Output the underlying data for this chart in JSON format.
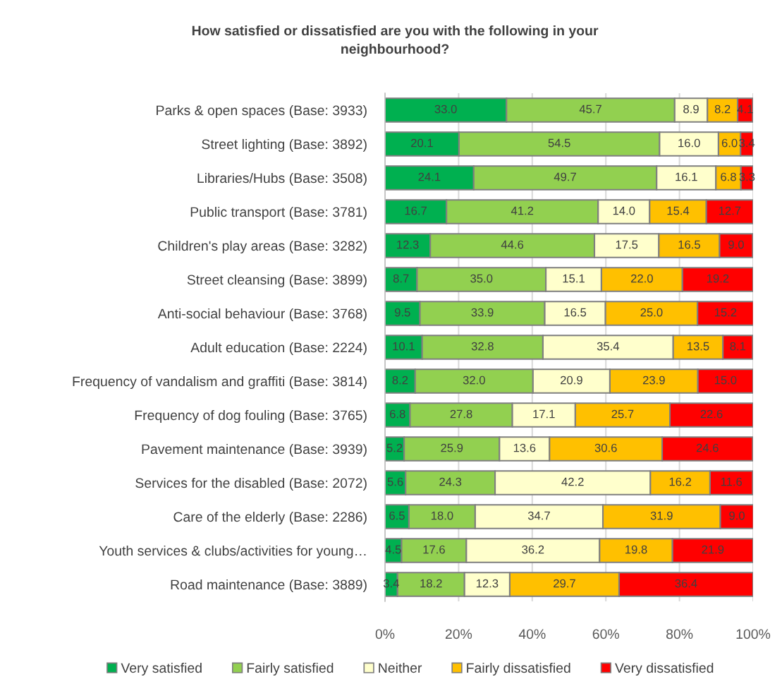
{
  "chart_data": {
    "type": "bar",
    "orientation": "horizontal",
    "stacked": true,
    "title": "How satisfied or dissatisfied are you with the following in your neighbourhood?",
    "categories": [
      "Parks & open spaces (Base: 3933)",
      "Street lighting (Base: 3892)",
      "Libraries/Hubs (Base: 3508)",
      "Public transport (Base: 3781)",
      "Children's play areas (Base: 3282)",
      "Street cleansing (Base: 3899)",
      "Anti-social behaviour (Base: 3768)",
      "Adult education (Base: 2224)",
      "Frequency of vandalism and graffiti (Base: 3814)",
      "Frequency of dog fouling (Base: 3765)",
      "Pavement maintenance (Base: 3939)",
      "Services for the disabled (Base: 2072)",
      "Care of the elderly (Base: 2286)",
      "Youth services & clubs/activities for young…",
      "Road maintenance (Base: 3889)"
    ],
    "series": [
      {
        "name": "Very satisfied",
        "color": "#00b050",
        "values": [
          33.0,
          20.1,
          24.1,
          16.7,
          12.3,
          8.7,
          9.5,
          10.1,
          8.2,
          6.8,
          5.2,
          5.6,
          6.5,
          4.5,
          3.4
        ],
        "value_labels": [
          "33.0",
          "20.1",
          "24.1",
          "16.7",
          "12.3",
          "8.7",
          "9.5",
          "10.1",
          "8.2",
          "6.8",
          "5.2",
          "5.6",
          "6.5",
          "4.5",
          "3.4"
        ]
      },
      {
        "name": "Fairly satisfied",
        "color": "#92d050",
        "values": [
          45.7,
          54.5,
          49.7,
          41.2,
          44.6,
          35.0,
          33.9,
          32.8,
          32.0,
          27.8,
          25.9,
          24.3,
          18.0,
          17.6,
          18.2
        ],
        "value_labels": [
          "45.7",
          "54.5",
          "49.7",
          "41.2",
          "44.6",
          "35.0",
          "33.9",
          "32.8",
          "32.0",
          "27.8",
          "25.9",
          "24.3",
          "18.0",
          "17.6",
          "18.2"
        ]
      },
      {
        "name": "Neither",
        "color": "#ffffcc",
        "values": [
          8.9,
          16.0,
          16.1,
          14.0,
          17.5,
          15.1,
          16.5,
          35.4,
          20.9,
          17.1,
          13.6,
          42.2,
          34.7,
          36.2,
          12.3
        ],
        "value_labels": [
          "8.9",
          "16.0",
          "16.1",
          "14.0",
          "17.5",
          "15.1",
          "16.5",
          "35.4",
          "20.9",
          "17.1",
          "13.6",
          "42.2",
          "34.7",
          "36.2",
          "12.3"
        ]
      },
      {
        "name": "Fairly dissatisfied",
        "color": "#ffc000",
        "values": [
          8.2,
          6.0,
          6.8,
          15.4,
          16.5,
          22.0,
          25.0,
          13.5,
          23.9,
          25.7,
          30.6,
          16.2,
          31.9,
          19.8,
          29.7
        ],
        "value_labels": [
          "8.2",
          "6.0",
          "6.8",
          "15.4",
          "16.5",
          "22.0",
          "25.0",
          "13.5",
          "23.9",
          "25.7",
          "30.6",
          "16.2",
          "31.9",
          "19.8",
          "29.7"
        ]
      },
      {
        "name": "Very dissatisfied",
        "color": "#ff0000",
        "values": [
          4.1,
          3.4,
          3.3,
          12.7,
          9.0,
          19.2,
          15.2,
          8.1,
          15.0,
          22.6,
          24.6,
          11.6,
          9.0,
          21.9,
          36.4
        ],
        "value_labels": [
          "4.1",
          "3.4",
          "3.3",
          "12.7",
          "9.0",
          "19.2",
          "15.2",
          "8.1",
          "15.0",
          "22.6",
          "24.6",
          "11.6",
          "9.0",
          "21.9",
          "36.4"
        ]
      }
    ],
    "xlim": [
      0,
      100
    ],
    "xticks": [
      {
        "value": 0,
        "label": "0%"
      },
      {
        "value": 20,
        "label": "20%"
      },
      {
        "value": 40,
        "label": "40%"
      },
      {
        "value": 60,
        "label": "60%"
      },
      {
        "value": 80,
        "label": "80%"
      },
      {
        "value": 100,
        "label": "100%"
      }
    ],
    "grid": "x",
    "legend": "bottom"
  }
}
